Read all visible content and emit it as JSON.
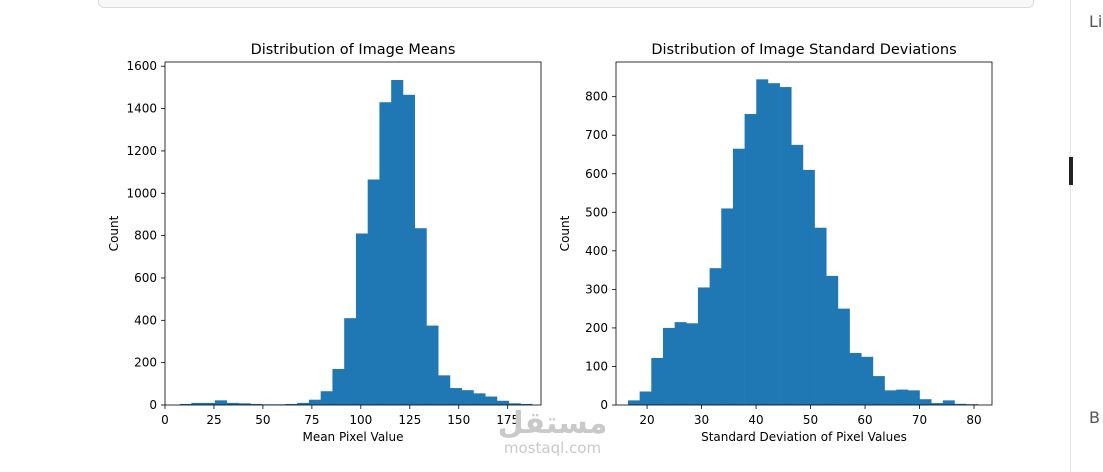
{
  "side_labels": {
    "top": "Li",
    "bottom": "B"
  },
  "watermark": {
    "arabic": "مستقل",
    "latin": "mostaql.com"
  },
  "chart_data": [
    {
      "type": "bar",
      "title": "Distribution of Image Means",
      "xlabel": "Mean Pixel Value",
      "ylabel": "Count",
      "xlim": [
        0,
        192
      ],
      "ylim": [
        0,
        1620
      ],
      "xticks": [
        0,
        25,
        50,
        75,
        100,
        125,
        150,
        175
      ],
      "yticks": [
        0,
        200,
        400,
        600,
        800,
        1000,
        1200,
        1400,
        1600
      ],
      "bin_edges": [
        7.5,
        13.5,
        19.5,
        25.5,
        31.5,
        37.5,
        43.5,
        49.5,
        55.5,
        61.5,
        67.5,
        73.5,
        79.5,
        85.5,
        91.5,
        97.5,
        103.5,
        109.5,
        115.5,
        121.5,
        127.5,
        133.5,
        139.5,
        145.5,
        151.5,
        157.5,
        163.5,
        169.5,
        175.5,
        181.5,
        187.5
      ],
      "values": [
        5,
        10,
        10,
        22,
        10,
        8,
        5,
        3,
        3,
        5,
        10,
        25,
        65,
        170,
        410,
        810,
        1065,
        1430,
        1535,
        1465,
        835,
        375,
        140,
        80,
        70,
        55,
        40,
        20,
        8,
        5
      ],
      "color": "#1f77b4"
    },
    {
      "type": "bar",
      "title": "Distribution of Image Standard Deviations",
      "xlabel": "Standard Deviation of Pixel Values",
      "ylabel": "Count",
      "xlim": [
        14.3,
        83.3
      ],
      "ylim": [
        0,
        890
      ],
      "xticks": [
        20,
        30,
        40,
        50,
        60,
        70,
        80
      ],
      "yticks": [
        0,
        100,
        200,
        300,
        400,
        500,
        600,
        700,
        800
      ],
      "bin_edges": [
        16.5,
        18.64,
        20.78,
        22.92,
        25.06,
        27.2,
        29.34,
        31.48,
        33.62,
        35.76,
        37.9,
        40.04,
        42.18,
        44.32,
        46.46,
        48.6,
        50.74,
        52.88,
        55.02,
        57.16,
        59.3,
        61.44,
        63.58,
        65.72,
        67.86,
        70.0,
        72.14,
        74.28,
        76.42,
        78.56,
        80.7
      ],
      "values": [
        12,
        35,
        122,
        200,
        215,
        212,
        305,
        355,
        510,
        665,
        755,
        845,
        835,
        825,
        675,
        610,
        460,
        335,
        250,
        135,
        125,
        75,
        38,
        40,
        38,
        15,
        5,
        12,
        3,
        2
      ],
      "color": "#1f77b4"
    }
  ]
}
